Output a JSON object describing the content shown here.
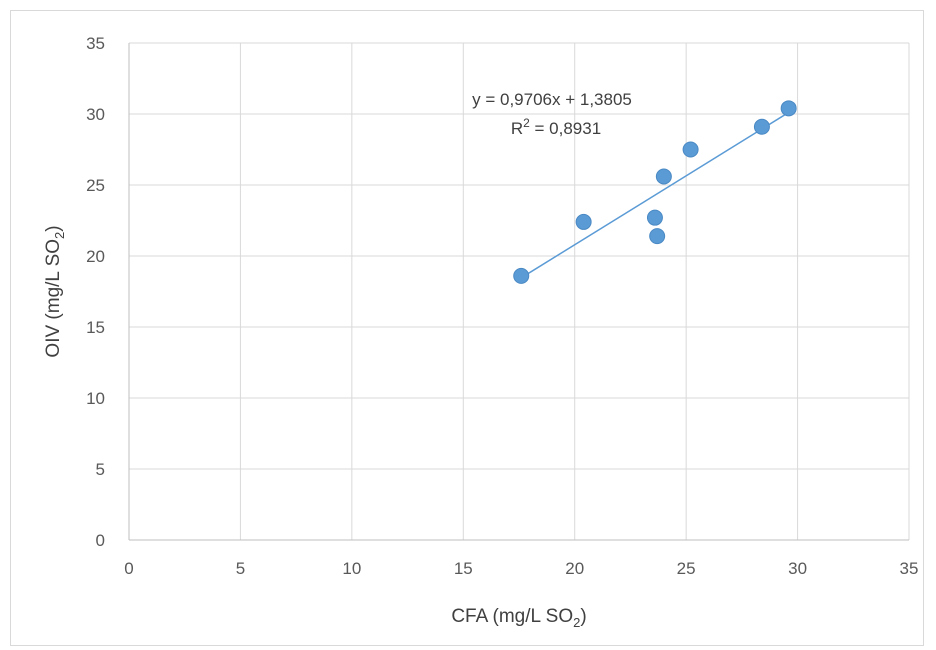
{
  "chart_data": {
    "type": "scatter",
    "title": "",
    "xlabel": "CFA (mg/L SO",
    "xlabel_sub": "2",
    "xlabel_end": ")",
    "ylabel": "OIV (mg/L SO",
    "ylabel_sub": "2",
    "ylabel_end": ")",
    "xlim": [
      0,
      35
    ],
    "ylim": [
      0,
      35
    ],
    "xticks": [
      0,
      5,
      10,
      15,
      20,
      25,
      30,
      35
    ],
    "yticks": [
      0,
      5,
      10,
      15,
      20,
      25,
      30,
      35
    ],
    "grid": true,
    "legend": "none",
    "series": [
      {
        "x": [
          17.6,
          20.4,
          23.6,
          23.7,
          24.0,
          25.2,
          28.4,
          29.6
        ],
        "y": [
          18.6,
          22.4,
          22.7,
          21.4,
          25.6,
          27.5,
          29.1,
          30.4
        ],
        "color": "#5b9bd5"
      }
    ],
    "trendline": {
      "slope": 0.9706,
      "intercept": 1.3805,
      "x_range": [
        17.6,
        29.6
      ],
      "equation": "y = 0,9706x + 1,3805",
      "r2_label": "R",
      "r2_sup": "2",
      "r2_value": " = 0,8931",
      "color": "#5b9bd5"
    },
    "colors": {
      "grid": "#d9d9d9",
      "axis": "#bfbfbf",
      "text": "#595959"
    }
  }
}
